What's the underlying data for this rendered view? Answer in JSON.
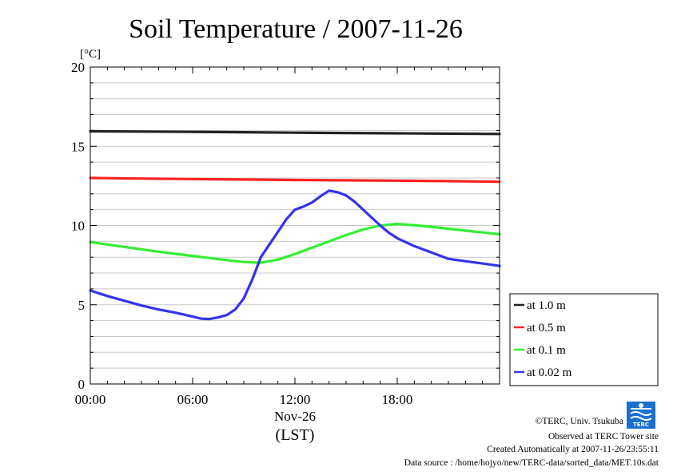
{
  "chart_data": {
    "type": "line",
    "title": "Soil Temperature / 2007-11-26",
    "ylabel": "[°C]",
    "xlabel": "(LST)",
    "date_label": "Nov-26",
    "ylim": [
      0,
      20
    ],
    "yticks": [
      "0",
      "5",
      "10",
      "15",
      "20"
    ],
    "xlim": [
      0,
      24
    ],
    "xticks": [
      {
        "label": "00:00",
        "hour": 0
      },
      {
        "label": "06:00",
        "hour": 6
      },
      {
        "label": "12:00",
        "hour": 12
      },
      {
        "label": "18:00",
        "hour": 18
      }
    ],
    "grid": true,
    "legend_position": "right",
    "series": [
      {
        "name": "at 1.0 m",
        "color": "#222222",
        "x": [
          0,
          3,
          6,
          9,
          12,
          15,
          18,
          21,
          24
        ],
        "y": [
          15.95,
          15.93,
          15.91,
          15.89,
          15.86,
          15.84,
          15.82,
          15.8,
          15.78
        ]
      },
      {
        "name": "at 0.5 m",
        "color": "#ff2222",
        "x": [
          0,
          3,
          6,
          9,
          12,
          15,
          18,
          21,
          24
        ],
        "y": [
          13.0,
          12.96,
          12.93,
          12.9,
          12.87,
          12.85,
          12.83,
          12.8,
          12.76
        ]
      },
      {
        "name": "at 0.1 m",
        "color": "#33ee33",
        "x": [
          0,
          2,
          4,
          6,
          8,
          9,
          10,
          11,
          12,
          13,
          14,
          15,
          16,
          17,
          18,
          19,
          20,
          21,
          22,
          23,
          24
        ],
        "y": [
          8.95,
          8.65,
          8.35,
          8.08,
          7.82,
          7.7,
          7.65,
          7.85,
          8.2,
          8.6,
          9.0,
          9.4,
          9.75,
          10.0,
          10.1,
          10.02,
          9.92,
          9.8,
          9.68,
          9.56,
          9.45
        ]
      },
      {
        "name": "at 0.02 m",
        "color": "#3333ee",
        "x": [
          0,
          1,
          2,
          3,
          4,
          5,
          6,
          6.5,
          7,
          7.5,
          8,
          8.5,
          9,
          9.5,
          10,
          10.5,
          11,
          11.5,
          12,
          12.5,
          13,
          13.5,
          14,
          14.5,
          15,
          15.5,
          16,
          16.5,
          17,
          17.5,
          18,
          19,
          20,
          21,
          22,
          23,
          24
        ],
        "y": [
          5.9,
          5.55,
          5.25,
          4.95,
          4.7,
          4.5,
          4.25,
          4.12,
          4.1,
          4.2,
          4.35,
          4.7,
          5.4,
          6.6,
          8.0,
          8.8,
          9.6,
          10.4,
          11.0,
          11.2,
          11.45,
          11.85,
          12.2,
          12.1,
          11.9,
          11.5,
          11.0,
          10.5,
          10.0,
          9.55,
          9.2,
          8.7,
          8.3,
          7.9,
          7.75,
          7.6,
          7.45
        ]
      }
    ]
  },
  "footer": {
    "copyright": "©TERC, Univ. Tsukuba",
    "observed": "Observed at TERC Tower site",
    "created": "Created Automatically at 2007-11-26/23:55:11",
    "source": "Data source : /home/hojyo/new/TERC-data/sorted_data/MET.10s.dat",
    "logo_text": "TERC"
  }
}
